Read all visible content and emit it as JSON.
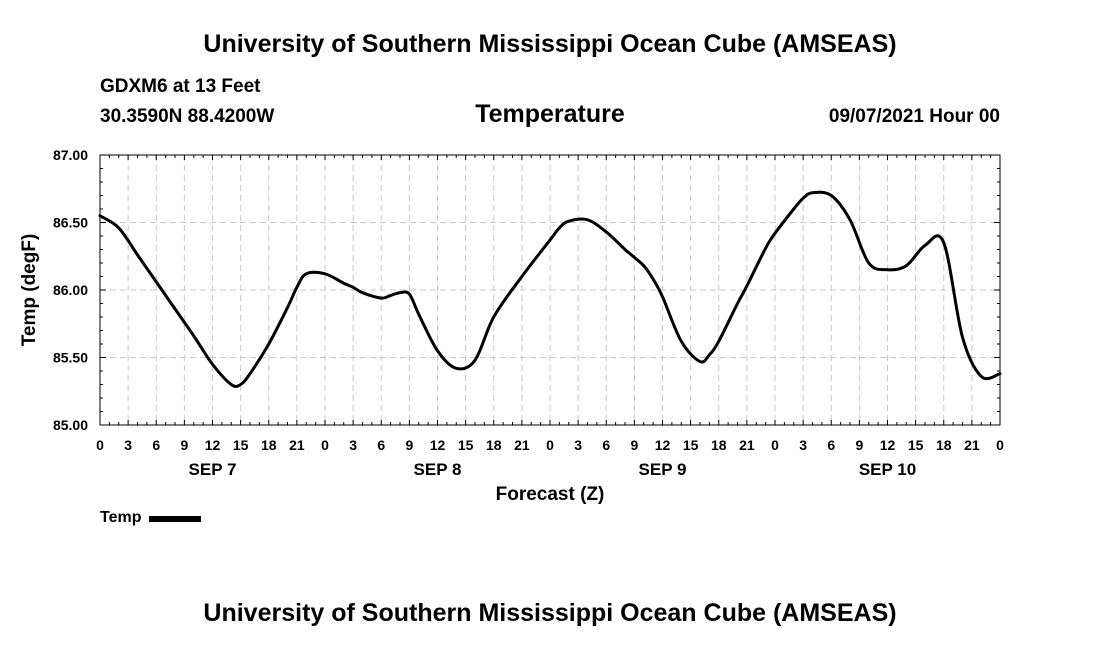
{
  "header": {
    "title_top": "University of Southern Mississippi Ocean Cube (AMSEAS)",
    "station": "GDXM6 at 13 Feet",
    "coords": "30.3590N  88.4200W",
    "chart_title": "Temperature",
    "datetime": "09/07/2021 Hour 00"
  },
  "footer": {
    "title_bottom": "University of Southern Mississippi Ocean Cube (AMSEAS)"
  },
  "chart_data": {
    "type": "line",
    "title": "Temperature",
    "xlabel": "Forecast (Z)",
    "ylabel": "Temp (degF)",
    "xlim": [
      0,
      96
    ],
    "ylim": [
      85.0,
      87.0
    ],
    "grid": true,
    "legend_position": "bottom-left",
    "x_tick_hours": [
      0,
      3,
      6,
      9,
      12,
      15,
      18,
      21,
      24,
      27,
      30,
      33,
      36,
      39,
      42,
      45,
      48,
      51,
      54,
      57,
      60,
      63,
      66,
      69,
      72,
      75,
      78,
      81,
      84,
      87,
      90,
      93,
      96
    ],
    "x_tick_labels": [
      "0",
      "3",
      "6",
      "9",
      "12",
      "15",
      "18",
      "21",
      "0",
      "3",
      "6",
      "9",
      "12",
      "15",
      "18",
      "21",
      "0",
      "3",
      "6",
      "9",
      "12",
      "15",
      "18",
      "21",
      "0",
      "3",
      "6",
      "9",
      "12",
      "15",
      "18",
      "21",
      "0"
    ],
    "y_ticks": [
      85.0,
      85.5,
      86.0,
      86.5,
      87.0
    ],
    "y_tick_labels": [
      "85.00",
      "85.50",
      "86.00",
      "86.50",
      "87.00"
    ],
    "day_labels": [
      {
        "hour": 12,
        "label": "SEP 7"
      },
      {
        "hour": 36,
        "label": "SEP 8"
      },
      {
        "hour": 60,
        "label": "SEP 9"
      },
      {
        "hour": 84,
        "label": "SEP 10"
      }
    ],
    "series": [
      {
        "name": "Temp",
        "color": "#000000",
        "x": [
          0,
          2,
          4,
          6,
          8,
          10,
          12,
          14,
          15,
          16,
          18,
          20,
          21,
          22,
          24,
          26,
          27,
          28,
          30,
          31,
          32,
          33,
          34,
          36,
          38,
          40,
          42,
          45,
          48,
          49,
          50,
          52,
          54,
          56,
          56.5,
          58,
          59,
          60,
          62,
          64,
          65,
          66,
          68,
          69,
          71,
          72,
          74,
          75,
          76,
          78,
          80,
          82,
          84,
          86,
          88,
          90,
          92,
          94,
          96
        ],
        "values": [
          86.55,
          86.46,
          86.26,
          86.06,
          85.86,
          85.66,
          85.45,
          85.3,
          85.3,
          85.38,
          85.6,
          85.87,
          86.02,
          86.12,
          86.12,
          86.05,
          86.02,
          85.98,
          85.94,
          85.96,
          85.98,
          85.97,
          85.82,
          85.55,
          85.42,
          85.48,
          85.8,
          86.1,
          86.37,
          86.46,
          86.51,
          86.52,
          86.43,
          86.3,
          86.27,
          86.18,
          86.08,
          85.95,
          85.62,
          85.47,
          85.52,
          85.62,
          85.9,
          86.03,
          86.31,
          86.42,
          86.6,
          86.68,
          86.72,
          86.7,
          86.52,
          86.2,
          86.15,
          86.18,
          86.33,
          86.35,
          85.65,
          85.36,
          85.38
        ]
      }
    ]
  }
}
